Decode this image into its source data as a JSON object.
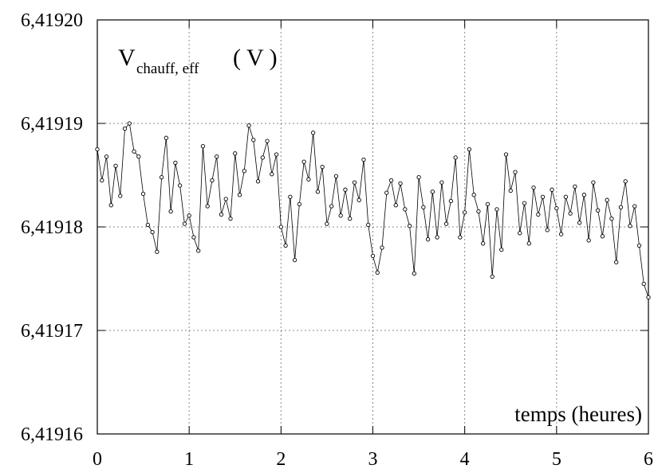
{
  "chart_data": {
    "type": "line",
    "ylabel": "V",
    "ylabel_subscript": "chauff, eff",
    "ylabel_unit": "( V )",
    "xlabel": "temps (heures)",
    "xlim": [
      0,
      6
    ],
    "xticks": [
      0,
      1,
      2,
      3,
      4,
      5,
      6
    ],
    "ylim": [
      6.41916,
      6.4192
    ],
    "yticks": [
      {
        "value": 6.41916,
        "label": "6,41916"
      },
      {
        "value": 6.41917,
        "label": "6,41917"
      },
      {
        "value": 6.41918,
        "label": "6,41918"
      },
      {
        "value": 6.41919,
        "label": "6,41919"
      },
      {
        "value": 6.4192,
        "label": "6,41920"
      }
    ],
    "grid": true,
    "color": "#000000",
    "x": [
      0,
      0.05,
      0.1,
      0.15,
      0.2,
      0.25,
      0.3,
      0.35,
      0.4,
      0.45,
      0.5,
      0.55,
      0.6,
      0.65,
      0.7,
      0.75,
      0.8,
      0.85,
      0.9,
      0.95,
      1,
      1.05,
      1.1,
      1.15,
      1.2,
      1.25,
      1.3,
      1.35,
      1.4,
      1.45,
      1.5,
      1.55,
      1.6,
      1.65,
      1.7,
      1.75,
      1.8,
      1.85,
      1.9,
      1.95,
      2,
      2.05,
      2.1,
      2.15,
      2.2,
      2.25,
      2.3,
      2.35,
      2.4,
      2.45,
      2.5,
      2.55,
      2.6,
      2.65,
      2.7,
      2.75,
      2.8,
      2.85,
      2.9,
      2.95,
      3,
      3.05,
      3.1,
      3.15,
      3.2,
      3.25,
      3.3,
      3.35,
      3.4,
      3.45,
      3.5,
      3.55,
      3.6,
      3.65,
      3.7,
      3.75,
      3.8,
      3.85,
      3.9,
      3.95,
      4,
      4.05,
      4.1,
      4.15,
      4.2,
      4.25,
      4.3,
      4.35,
      4.4,
      4.45,
      4.5,
      4.55,
      4.6,
      4.65,
      4.7,
      4.75,
      4.8,
      4.85,
      4.9,
      4.95,
      5,
      5.05,
      5.1,
      5.15,
      5.2,
      5.25,
      5.3,
      5.35,
      5.4,
      5.45,
      5.5,
      5.55,
      5.6,
      5.65,
      5.7,
      5.75,
      5.8,
      5.85,
      5.9,
      5.95,
      6
    ],
    "values": [
      6.4191875,
      6.4191845,
      6.4191868,
      6.4191821,
      6.4191859,
      6.419183,
      6.4191895,
      6.41919,
      6.4191873,
      6.4191868,
      6.4191832,
      6.4191802,
      6.4191795,
      6.4191776,
      6.4191848,
      6.4191886,
      6.4191815,
      6.4191862,
      6.419184,
      6.4191803,
      6.4191811,
      6.419179,
      6.4191777,
      6.4191878,
      6.419182,
      6.4191845,
      6.4191868,
      6.4191812,
      6.4191827,
      6.4191808,
      6.4191871,
      6.4191831,
      6.4191854,
      6.4191898,
      6.4191884,
      6.4191844,
      6.4191867,
      6.4191883,
      6.4191851,
      6.419187,
      6.41918,
      6.4191782,
      6.4191829,
      6.4191768,
      6.4191822,
      6.4191863,
      6.4191846,
      6.4191891,
      6.4191834,
      6.4191858,
      6.4191803,
      6.419182,
      6.4191849,
      6.4191811,
      6.4191836,
      6.4191808,
      6.4191843,
      6.4191826,
      6.4191865,
      6.4191802,
      6.4191772,
      6.4191756,
      6.419178,
      6.4191833,
      6.4191845,
      6.4191821,
      6.4191842,
      6.4191817,
      6.4191801,
      6.4191755,
      6.4191848,
      6.4191819,
      6.4191788,
      6.4191834,
      6.419179,
      6.4191843,
      6.4191803,
      6.4191825,
      6.4191867,
      6.419179,
      6.4191814,
      6.4191875,
      6.4191831,
      6.4191815,
      6.4191784,
      6.4191822,
      6.4191752,
      6.4191817,
      6.4191778,
      6.419187,
      6.4191835,
      6.4191853,
      6.4191794,
      6.4191823,
      6.4191784,
      6.4191838,
      6.4191812,
      6.4191829,
      6.4191797,
      6.4191836,
      6.4191818,
      6.4191793,
      6.4191829,
      6.4191813,
      6.4191839,
      6.4191804,
      6.4191831,
      6.4191787,
      6.4191843,
      6.4191816,
      6.4191791,
      6.4191826,
      6.4191808,
      6.4191766,
      6.4191819,
      6.4191844,
      6.4191801,
      6.419182,
      6.4191782,
      6.4191745,
      6.4191732
    ]
  }
}
